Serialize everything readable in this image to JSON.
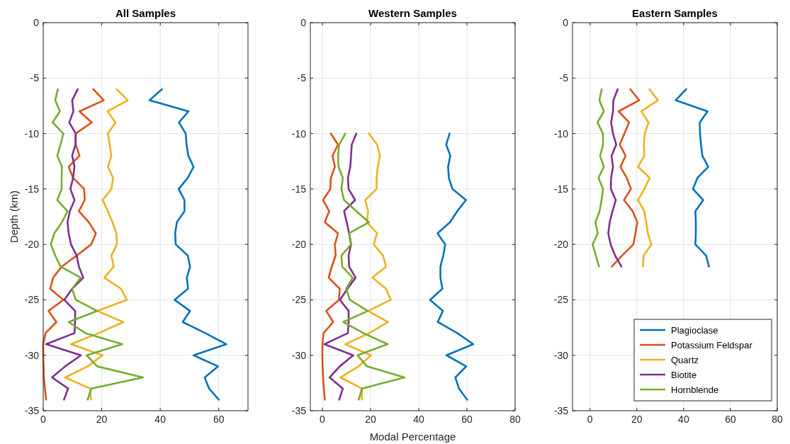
{
  "chart_data": [
    {
      "type": "line",
      "title": "All Samples",
      "ylabel": "Depth (km)",
      "xlim": [
        0,
        70
      ],
      "xticks": [
        0,
        20,
        40,
        60
      ],
      "ylim": [
        -35,
        0
      ],
      "yticks": [
        -35,
        -30,
        -25,
        -20,
        -15,
        -10,
        -5,
        0
      ],
      "grid": true,
      "legend": false,
      "line_style": "solid",
      "marker": "none",
      "series": [
        {
          "color": "#0072bd",
          "values": [
            -6,
            -7,
            -8,
            -9,
            -10,
            -11,
            -12,
            -13,
            -14,
            -15,
            -16,
            -17,
            -18,
            -19,
            -20,
            -21,
            -22,
            -23,
            -24,
            -25,
            -26,
            -27,
            -28,
            -29,
            -30,
            -31,
            -32,
            -33,
            -34
          ],
          "x": [
            40.6,
            36.3,
            49.7,
            46.4,
            48.7,
            49,
            49.6,
            51.4,
            49.4,
            46.3,
            48.3,
            48.3,
            45.7,
            45.1,
            45.3,
            49.4,
            50.2,
            49.1,
            49.5,
            44.9,
            50.2,
            47.7,
            55.4,
            62.6,
            51.4,
            59.8,
            55.2,
            56.7,
            60
          ]
        },
        {
          "color": "#d95319",
          "values": [
            -6,
            -7,
            -8,
            -9,
            -10,
            -11,
            -12,
            -13,
            -14,
            -15,
            -16,
            -17,
            -18,
            -19,
            -20,
            -21,
            -22,
            -23,
            -24,
            -25,
            -26,
            -27,
            -28,
            -29,
            -30,
            -31,
            -32,
            -33,
            -34
          ],
          "x": [
            17.1,
            20.7,
            12.4,
            16.6,
            11.1,
            11.1,
            12.4,
            8.7,
            10.2,
            14,
            14.2,
            12.2,
            15.6,
            18,
            16.4,
            11.5,
            6.3,
            3.4,
            2.4,
            6.9,
            1.8,
            4.5,
            0.8,
            0,
            0,
            0.1,
            0.2,
            0.6,
            1
          ]
        },
        {
          "color": "#edb120",
          "values": [
            -6,
            -7,
            -8,
            -9,
            -10,
            -11,
            -12,
            -13,
            -14,
            -15,
            -16,
            -17,
            -18,
            -19,
            -20,
            -21,
            -22,
            -23,
            -24,
            -25,
            -26,
            -27,
            -28,
            -29,
            -30,
            -31,
            -32,
            -33,
            -34
          ],
          "x": [
            25.1,
            28.9,
            22,
            24.7,
            22.1,
            22.7,
            23.3,
            22.1,
            23.9,
            23.3,
            20.3,
            22.1,
            23.7,
            25,
            25.2,
            23.3,
            24.1,
            20.9,
            26.6,
            28.6,
            18.5,
            27.4,
            19,
            9.5,
            20.3,
            15.2,
            7.5,
            16,
            16.3
          ]
        },
        {
          "color": "#7e2f8e",
          "values": [
            -6,
            -7,
            -8,
            -9,
            -10,
            -11,
            -12,
            -13,
            -14,
            -15,
            -16,
            -17,
            -18,
            -19,
            -20,
            -21,
            -22,
            -23,
            -24,
            -25,
            -26,
            -27,
            -28,
            -29,
            -30,
            -31,
            -32,
            -33,
            -34
          ],
          "x": [
            11.8,
            9.9,
            10.3,
            8.9,
            11.1,
            11,
            9.9,
            10.7,
            10.2,
            9.3,
            10.7,
            9.1,
            8.3,
            8.7,
            9.5,
            11.4,
            12.2,
            13.7,
            9.9,
            7.2,
            10.9,
            10.9,
            10.7,
            1,
            12.9,
            7.5,
            3,
            8.5,
            7.1
          ]
        },
        {
          "color": "#77ac30",
          "values": [
            -6,
            -7,
            -8,
            -9,
            -10,
            -11,
            -12,
            -13,
            -14,
            -15,
            -16,
            -17,
            -18,
            -19,
            -20,
            -21,
            -22,
            -23,
            -24,
            -25,
            -26,
            -27,
            -28,
            -29,
            -30,
            -31,
            -32,
            -33,
            -34
          ],
          "x": [
            5,
            4.1,
            5.7,
            3.2,
            6.9,
            5.9,
            4.8,
            6.4,
            6.3,
            6.3,
            4.8,
            8.3,
            6.4,
            3.8,
            2.6,
            4.1,
            5.9,
            12.8,
            9.9,
            11.1,
            18.5,
            8.7,
            14.4,
            27,
            14.8,
            18.5,
            34.1,
            16.4,
            15.2
          ]
        }
      ]
    },
    {
      "type": "line",
      "title": "Western Samples",
      "xlabel": "Modal Percentage",
      "xlim": [
        -5,
        80
      ],
      "xticks": [
        0,
        20,
        40,
        60,
        80
      ],
      "ylim": [
        -35,
        0
      ],
      "yticks": [
        -35,
        -30,
        -25,
        -20,
        -15,
        -10,
        -5,
        0
      ],
      "grid": true,
      "legend": false,
      "line_style": "solid",
      "marker": "none",
      "series": [
        {
          "color": "#0072bd",
          "values": [
            -10,
            -11,
            -12,
            -13,
            -14,
            -15,
            -16,
            -17,
            -18,
            -19,
            -20,
            -21,
            -22,
            -23,
            -24,
            -25,
            -26,
            -27,
            -28,
            -29,
            -30,
            -31,
            -32,
            -33,
            -34
          ],
          "x": [
            52.8,
            51.4,
            53.1,
            52.2,
            52.5,
            54,
            59.6,
            56,
            53,
            47.8,
            51,
            50.2,
            49,
            49,
            49.8,
            44.7,
            50,
            47.9,
            56,
            62.6,
            51.5,
            59.7,
            55.2,
            56.7,
            60.1
          ]
        },
        {
          "color": "#d95319",
          "values": [
            -10,
            -11,
            -12,
            -13,
            -14,
            -15,
            -16,
            -17,
            -18,
            -19,
            -20,
            -21,
            -22,
            -23,
            -24,
            -25,
            -26,
            -27,
            -28,
            -29,
            -30,
            -31,
            -32,
            -33,
            -34
          ],
          "x": [
            3.5,
            6.5,
            4.2,
            5.2,
            3.5,
            3.3,
            0.3,
            2.8,
            1,
            6.5,
            5.2,
            5.5,
            3.9,
            2.6,
            7.2,
            6.9,
            1.6,
            4.5,
            0.5,
            0,
            0,
            0.1,
            0.3,
            0.6,
            1
          ]
        },
        {
          "color": "#edb120",
          "values": [
            -10,
            -11,
            -12,
            -13,
            -14,
            -15,
            -16,
            -17,
            -18,
            -19,
            -20,
            -21,
            -22,
            -23,
            -24,
            -25,
            -26,
            -27,
            -28,
            -29,
            -30,
            -31,
            -32,
            -33,
            -34
          ],
          "x": [
            19.3,
            22.7,
            23.9,
            23,
            22.5,
            22.5,
            17.8,
            19,
            18.5,
            22.7,
            21.3,
            25.2,
            26.4,
            20.8,
            26.4,
            28.4,
            19,
            27.2,
            19.5,
            9.5,
            20.2,
            15,
            7.5,
            16.4,
            16.4
          ]
        },
        {
          "color": "#7e2f8e",
          "values": [
            -10,
            -11,
            -12,
            -13,
            -14,
            -15,
            -16,
            -17,
            -18,
            -19,
            -20,
            -21,
            -22,
            -23,
            -24,
            -25,
            -26,
            -27,
            -28,
            -29,
            -30,
            -31,
            -32,
            -33,
            -34
          ],
          "x": [
            14.1,
            12.2,
            11.9,
            11.6,
            10.6,
            10.9,
            13.6,
            9,
            10.1,
            11.1,
            11.9,
            10.9,
            11.1,
            13.8,
            10.4,
            7.3,
            10.9,
            10.9,
            10.6,
            0.8,
            12.8,
            7.2,
            3,
            8.5,
            7
          ]
        },
        {
          "color": "#77ac30",
          "values": [
            -10,
            -11,
            -12,
            -13,
            -14,
            -15,
            -16,
            -17,
            -18,
            -19,
            -20,
            -21,
            -22,
            -23,
            -24,
            -25,
            -26,
            -27,
            -28,
            -29,
            -30,
            -31,
            -32,
            -33,
            -34
          ],
          "x": [
            9.5,
            7,
            6.5,
            6.7,
            8.5,
            7.9,
            9,
            14.1,
            19.3,
            11.1,
            11.9,
            7.9,
            8.2,
            12.6,
            9.9,
            11.4,
            18.8,
            8.7,
            17,
            27.1,
            14.6,
            18.5,
            34.1,
            16.4,
            15.1
          ]
        }
      ]
    },
    {
      "type": "line",
      "title": "Eastern Samples",
      "xlim": [
        -7.5,
        80
      ],
      "xticks": [
        0,
        20,
        40,
        60,
        80
      ],
      "ylim": [
        -35,
        0
      ],
      "yticks": [
        -35,
        -30,
        -25,
        -20,
        -15,
        -10,
        -5,
        0
      ],
      "grid": true,
      "legend": "bottom right",
      "line_style": "solid",
      "marker": "none",
      "series": [
        {
          "name": "Plagioclase",
          "color": "#0072bd",
          "values": [
            -6,
            -7,
            -8,
            -9,
            -10,
            -11,
            -12,
            -13,
            -14,
            -15,
            -16,
            -17,
            -18,
            -19,
            -20,
            -21,
            -22
          ],
          "x": [
            41.1,
            36.6,
            50.2,
            46.9,
            47,
            47.4,
            48,
            50.5,
            45.9,
            44,
            48.4,
            45,
            45.2,
            45.2,
            45,
            49.6,
            50.8
          ]
        },
        {
          "name": "Potassium Feldspar",
          "color": "#d95319",
          "values": [
            -6,
            -7,
            -8,
            -9,
            -10,
            -11,
            -12,
            -13,
            -14,
            -15,
            -16,
            -17,
            -18,
            -19,
            -20,
            -21,
            -22
          ],
          "x": [
            17.2,
            21,
            12.2,
            16.7,
            14.7,
            12.7,
            15.2,
            13,
            15.7,
            17.5,
            14.5,
            18.2,
            20.2,
            19.4,
            18.5,
            13.7,
            9.3
          ]
        },
        {
          "name": "Quartz",
          "color": "#edb120",
          "values": [
            -6,
            -7,
            -8,
            -9,
            -10,
            -11,
            -12,
            -13,
            -14,
            -15,
            -16,
            -17,
            -18,
            -19,
            -20,
            -21,
            -22
          ],
          "x": [
            25.4,
            29,
            21.9,
            25,
            23.4,
            23,
            23.2,
            20.5,
            25.5,
            23.2,
            20.5,
            23.2,
            24,
            24.7,
            26.2,
            22.9,
            22.6
          ]
        },
        {
          "name": "Biotite",
          "color": "#7e2f8e",
          "values": [
            -6,
            -7,
            -8,
            -9,
            -10,
            -11,
            -12,
            -13,
            -14,
            -15,
            -16,
            -17,
            -18,
            -19,
            -20,
            -21,
            -22
          ],
          "x": [
            11.8,
            10,
            9.8,
            9,
            9.8,
            11.2,
            9.2,
            9.8,
            9,
            8.9,
            11,
            9.6,
            8.4,
            7.8,
            8.8,
            10.7,
            13.4
          ]
        },
        {
          "name": "Hornblende",
          "color": "#77ac30",
          "values": [
            -6,
            -7,
            -8,
            -9,
            -10,
            -11,
            -12,
            -13,
            -14,
            -15,
            -16,
            -17,
            -18,
            -19,
            -20,
            -21,
            -22
          ],
          "x": [
            5,
            4,
            5.9,
            3.2,
            5.5,
            5.6,
            4.3,
            5.9,
            3.6,
            5.6,
            4.9,
            4.1,
            2.3,
            3.3,
            1.1,
            2.5,
            3.8
          ]
        }
      ]
    }
  ]
}
